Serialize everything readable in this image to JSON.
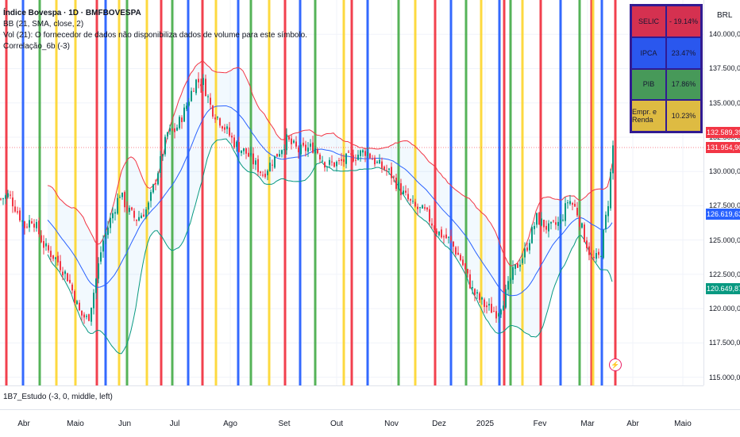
{
  "header": {
    "title": "Índice Bovespa · 1D · BMFBOVESPA",
    "indicators": [
      "BB (21, SMA, close, 2)",
      "Vol (21): O fornecedor de dados não disponibiliza dados de volume para este símbolo.",
      "Correlação_6b (-3)"
    ]
  },
  "currency": "BRL",
  "pane2_label": "1B7_Estudo (-3, 0, middle, left)",
  "price_tags": [
    {
      "value": "132.589,39",
      "color": "#f23645"
    },
    {
      "value": "131.954,90",
      "color": "#f23645"
    },
    {
      "value": "126.619,63",
      "color": "#2962ff"
    },
    {
      "value": "120.649,87",
      "color": "#089981"
    }
  ],
  "macro_table": {
    "rows": [
      {
        "label": "SELIC",
        "value": "- 19.14%",
        "color": "#f23645"
      },
      {
        "label": "IPCA",
        "value": "23.47%",
        "color": "#2962ff"
      },
      {
        "label": "PIB",
        "value": "17.86%",
        "color": "#4caf50"
      },
      {
        "label": "Empr. e Renda",
        "value": "10.23%",
        "color": "#fdd835"
      }
    ]
  },
  "lightning_icon": "⚡",
  "chart_data": {
    "type": "candlestick",
    "x_axis_labels": [
      "Abr",
      "Maio",
      "Jun",
      "Jul",
      "Ago",
      "Set",
      "Out",
      "Nov",
      "Dez",
      "2025",
      "Fev",
      "Mar",
      "Abr",
      "Maio"
    ],
    "y_axis_labels": [
      "140.000,00",
      "137.500,00",
      "135.000,00",
      "132.500,00",
      "130.000,00",
      "127.500,00",
      "125.000,00",
      "122.500,00",
      "120.000,00",
      "117.500,00",
      "115.000,00"
    ],
    "y_ticks": [
      140000,
      137500,
      135000,
      132500,
      130000,
      127500,
      125000,
      122500,
      120000,
      117500,
      115000
    ],
    "ylim": [
      114400,
      142500
    ],
    "close_anchors": [
      [
        0,
        128000
      ],
      [
        10,
        128300
      ],
      [
        20,
        127200
      ],
      [
        30,
        126000
      ],
      [
        40,
        126600
      ],
      [
        55,
        124500
      ],
      [
        70,
        123600
      ],
      [
        85,
        122200
      ],
      [
        100,
        119600
      ],
      [
        110,
        119200
      ],
      [
        118,
        121500
      ],
      [
        128,
        124800
      ],
      [
        140,
        126800
      ],
      [
        150,
        128400
      ],
      [
        160,
        127200
      ],
      [
        170,
        126500
      ],
      [
        185,
        127300
      ],
      [
        200,
        130500
      ],
      [
        210,
        132800
      ],
      [
        220,
        133000
      ],
      [
        232,
        134500
      ],
      [
        245,
        136600
      ],
      [
        255,
        136500
      ],
      [
        265,
        134600
      ],
      [
        280,
        133400
      ],
      [
        295,
        132000
      ],
      [
        310,
        131300
      ],
      [
        330,
        129800
      ],
      [
        345,
        131000
      ],
      [
        360,
        132300
      ],
      [
        375,
        131500
      ],
      [
        395,
        131800
      ],
      [
        410,
        130500
      ],
      [
        425,
        130600
      ],
      [
        440,
        131000
      ],
      [
        460,
        131500
      ],
      [
        475,
        130500
      ],
      [
        490,
        129900
      ],
      [
        505,
        128500
      ],
      [
        520,
        127400
      ],
      [
        535,
        127000
      ],
      [
        550,
        125600
      ],
      [
        565,
        125000
      ],
      [
        580,
        123500
      ],
      [
        595,
        121200
      ],
      [
        610,
        120200
      ],
      [
        625,
        119700
      ],
      [
        635,
        120900
      ],
      [
        645,
        122600
      ],
      [
        660,
        124100
      ],
      [
        675,
        126600
      ],
      [
        690,
        125800
      ],
      [
        705,
        126300
      ],
      [
        715,
        128000
      ],
      [
        725,
        127200
      ],
      [
        735,
        125200
      ],
      [
        745,
        123500
      ],
      [
        755,
        123800
      ],
      [
        765,
        127800
      ],
      [
        772,
        132500
      ]
    ],
    "vertical_lines": [
      {
        "color": "#f23645",
        "x": [
          8,
          122,
          203,
          255,
          359,
          443,
          548,
          635,
          681,
          745,
          775
        ]
      },
      {
        "color": "#2962ff",
        "x": [
          29,
          133,
          237,
          300,
          378,
          463,
          568,
          629,
          706,
          758
        ]
      },
      {
        "color": "#4caf50",
        "x": [
          50,
          160,
          217,
          316,
          397,
          502,
          587,
          643,
          730
        ]
      },
      {
        "color": "#fdd835",
        "x": [
          71,
          95,
          150,
          185,
          272,
          339,
          433,
          523,
          606,
          658,
          747
        ]
      }
    ]
  }
}
